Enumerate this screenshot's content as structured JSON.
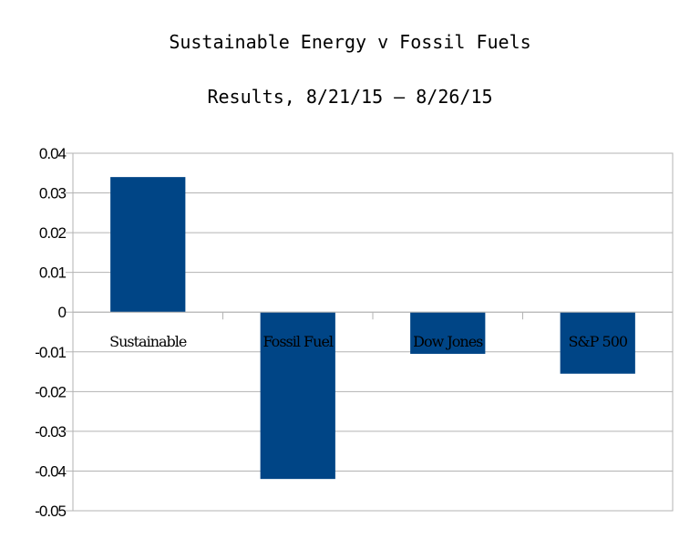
{
  "chart_data": {
    "type": "bar",
    "title": "Sustainable Energy v Fossil Fuels",
    "subtitle": "Results, 8/21/15 – 8/26/15",
    "categories": [
      "Sustainable",
      "Fossil Fuel",
      "Dow Jones",
      "S&P 500"
    ],
    "values": [
      0.034,
      -0.042,
      -0.0105,
      -0.0155
    ],
    "ylim": [
      -0.05,
      0.04
    ],
    "yticks": [
      0.04,
      0.03,
      0.02,
      0.01,
      0,
      -0.01,
      -0.02,
      -0.03,
      -0.04,
      -0.05
    ],
    "ytick_labels": [
      "0.04",
      "0.03",
      "0.02",
      "0.01",
      "0",
      "-0.01",
      "-0.02",
      "-0.03",
      "-0.04",
      "-0.05"
    ],
    "xlabel": "",
    "ylabel": "",
    "grid": true,
    "bar_color": "#004586",
    "grid_color": "#b3b3b3"
  }
}
